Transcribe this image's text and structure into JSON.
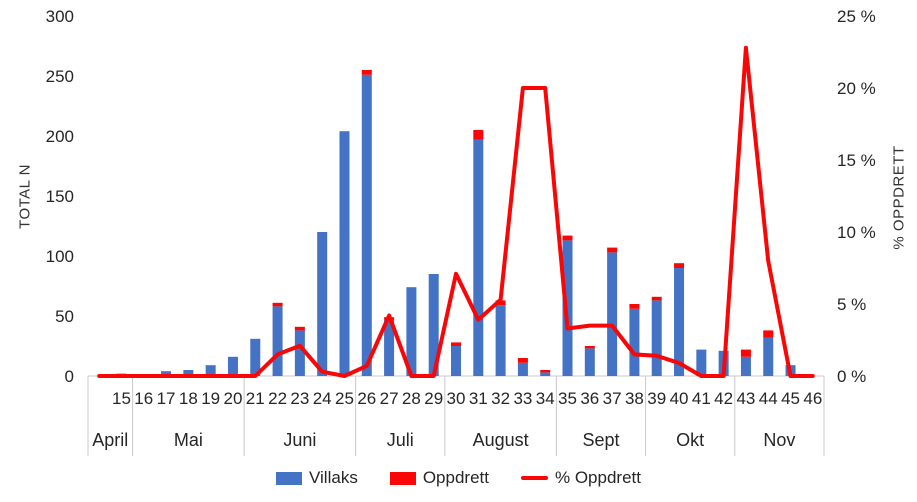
{
  "legend": [
    {
      "label": "Villaks",
      "marker": "box",
      "color": "#4472C4"
    },
    {
      "label": "Oppdrett",
      "marker": "box",
      "color": "#F90606"
    },
    {
      "label": "% Oppdrett",
      "marker": "line",
      "color": "#F90606"
    }
  ],
  "chart_data": {
    "type": "combo",
    "bar_mode": "stacked",
    "grid": "off",
    "legend_position": "bottom",
    "left_axis": {
      "title": "TOTAL N",
      "min": 0,
      "max": 300,
      "step": 50,
      "tick_labels": [
        "0",
        "50",
        "100",
        "150",
        "200",
        "250",
        "300"
      ]
    },
    "right_axis": {
      "title": "% OPPDRETT",
      "min": 0,
      "max": 25,
      "step": 5,
      "suffix": " %",
      "tick_labels": [
        "0 %",
        "5 %",
        "10 %",
        "15 %",
        "20 %",
        "25 %"
      ]
    },
    "categories": [
      "",
      "15",
      "16",
      "17",
      "18",
      "19",
      "20",
      "21",
      "22",
      "23",
      "24",
      "25",
      "26",
      "27",
      "28",
      "29",
      "30",
      "31",
      "32",
      "33",
      "34",
      "35",
      "36",
      "37",
      "38",
      "39",
      "40",
      "41",
      "42",
      "43",
      "44",
      "45",
      "46"
    ],
    "month_groups": [
      {
        "label": "April",
        "weeks": 2
      },
      {
        "label": "Mai",
        "weeks": 5
      },
      {
        "label": "Juni",
        "weeks": 5
      },
      {
        "label": "Juli",
        "weeks": 4
      },
      {
        "label": "August",
        "weeks": 5
      },
      {
        "label": "Sept",
        "weeks": 4
      },
      {
        "label": "Okt",
        "weeks": 4
      },
      {
        "label": "Nov",
        "weeks": 4
      }
    ],
    "series": [
      {
        "name": "Villaks",
        "chart": "bar",
        "axis": "left",
        "color": "#4472C4",
        "values": [
          0,
          2,
          0,
          4,
          5,
          9,
          16,
          31,
          58,
          38,
          120,
          204,
          251,
          47,
          74,
          85,
          25,
          197,
          59,
          11,
          3,
          113,
          23,
          103,
          56,
          63,
          90,
          22,
          21,
          16,
          32,
          9,
          0
        ]
      },
      {
        "name": "Oppdrett",
        "chart": "bar",
        "axis": "left",
        "color": "#F90606",
        "values": [
          0,
          0,
          0,
          0,
          0,
          0,
          0,
          0,
          3,
          3,
          0,
          0,
          4,
          2,
          0,
          0,
          3,
          8,
          4,
          4,
          2,
          4,
          2,
          4,
          4,
          3,
          4,
          0,
          0,
          6,
          6,
          0,
          0
        ]
      },
      {
        "name": "% Oppdrett",
        "chart": "line",
        "axis": "right",
        "color": "#F90606",
        "values": [
          0,
          0,
          0,
          0,
          0,
          0,
          0,
          0,
          1.5,
          2.1,
          0.3,
          0,
          0.7,
          4.2,
          0,
          0,
          7.1,
          3.9,
          5.3,
          20,
          20,
          3.3,
          3.5,
          3.5,
          1.5,
          1.4,
          0.9,
          0,
          0,
          22.8,
          8,
          0,
          0
        ]
      }
    ]
  }
}
